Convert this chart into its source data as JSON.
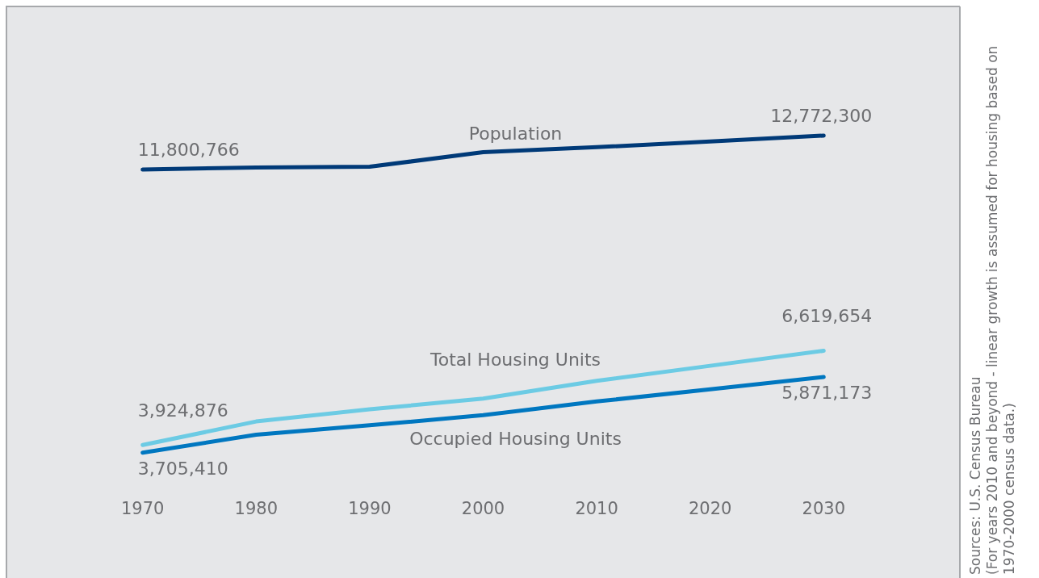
{
  "chart_data": {
    "type": "line",
    "x": [
      1970,
      1980,
      1990,
      2000,
      2010,
      2020,
      2030
    ],
    "xlim": [
      1958,
      2042
    ],
    "xticks": [
      1970,
      1980,
      1990,
      2000,
      2010,
      2020,
      2030
    ],
    "tick_labels": "x",
    "grid": false,
    "legend": false,
    "marker": "none",
    "line_style": "solid",
    "series": [
      {
        "name": "Population",
        "color": "#003a78",
        "values": [
          11800766,
          11862800,
          11883500,
          12297000,
          12441000,
          12607000,
          12772300
        ],
        "value_labels": [
          "11,800,766",
          null,
          null,
          null,
          null,
          null,
          "12,772,300"
        ]
      },
      {
        "name": "Total Housing Units",
        "color": "#6ccbe4",
        "values": [
          3924876,
          4598600,
          4945600,
          5251900,
          5762200,
          6191000,
          6619654
        ],
        "value_labels": [
          "3,924,876",
          null,
          null,
          null,
          null,
          null,
          "6,619,654"
        ]
      },
      {
        "name": "Occupied Housing Units",
        "color": "#0077c0",
        "values": [
          3705410,
          4221000,
          4489200,
          4778000,
          5169900,
          5520500,
          5871173
        ],
        "value_labels": [
          "3,705,410",
          null,
          null,
          null,
          null,
          null,
          "5,871,173"
        ]
      }
    ],
    "annotations": [
      "Sources: U.S. Census Bureau",
      "(For years 2010 and beyond - linear growth is assumed for housing based on 1970-2000 census data.)"
    ]
  }
}
